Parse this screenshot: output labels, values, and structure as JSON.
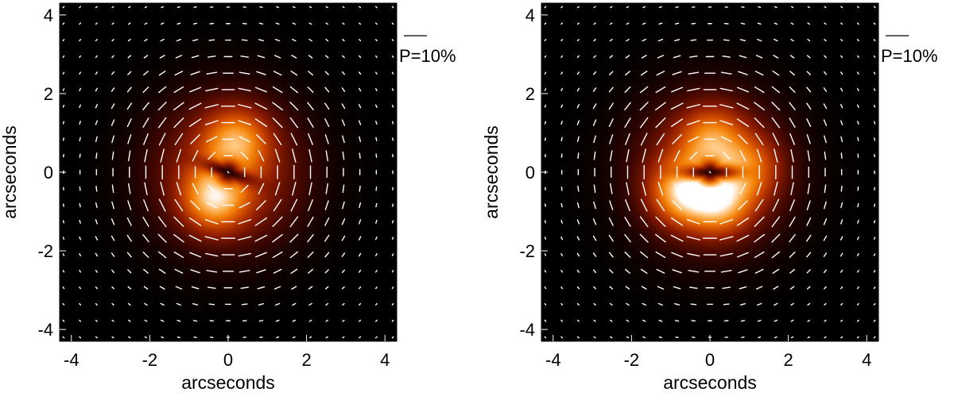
{
  "colors": {
    "background": "#000000",
    "vector": "#ffffff",
    "colormap": [
      "#000000",
      "#3a0500",
      "#8a1a00",
      "#d04a00",
      "#f4840a",
      "#ffc070",
      "#ffffff"
    ]
  },
  "chart_data": [
    {
      "type": "heatmap",
      "title": "",
      "xlabel": "arcseconds",
      "ylabel": "arcseconds",
      "xlim": [
        -4.3,
        4.3
      ],
      "ylim": [
        -4.3,
        4.3
      ],
      "xticks": [
        -4,
        -2,
        0,
        2,
        4
      ],
      "yticks": [
        -4,
        -2,
        0,
        2,
        4
      ],
      "xtick_labels": [
        "-4",
        "-2",
        "0",
        "2",
        "4"
      ],
      "ytick_labels": [
        "-4",
        "-2",
        "0",
        "2",
        "4"
      ],
      "grid": false,
      "legend": {
        "text": "P=10%",
        "placement": "top-right, outside"
      },
      "vector_field": "polarization vectors, azimuthal pattern",
      "intensity_peaks": [
        {
          "x": 0.2,
          "y": 0.8,
          "level": 0.82
        },
        {
          "x": -0.35,
          "y": -0.65,
          "level": 1.0
        }
      ],
      "dark_lane": {
        "x": 0,
        "y": 0,
        "angle_deg": -20
      }
    },
    {
      "type": "heatmap",
      "title": "",
      "xlabel": "arcseconds",
      "ylabel": "arcseconds",
      "xlim": [
        -4.3,
        4.3
      ],
      "ylim": [
        -4.3,
        4.3
      ],
      "xticks": [
        -4,
        -2,
        0,
        2,
        4
      ],
      "yticks": [
        -4,
        -2,
        0,
        2,
        4
      ],
      "xtick_labels": [
        "-4",
        "-2",
        "0",
        "2",
        "4"
      ],
      "ytick_labels": [
        "-4",
        "-2",
        "0",
        "2",
        "4"
      ],
      "grid": false,
      "legend": {
        "text": "P=10%",
        "placement": "top-right, outside"
      },
      "vector_field": "polarization vectors, azimuthal pattern",
      "intensity_peaks": [
        {
          "x": -0.7,
          "y": -0.5,
          "level": 1.0
        },
        {
          "x": 0.25,
          "y": -0.75,
          "level": 0.95
        },
        {
          "x": 0.05,
          "y": 0.85,
          "level": 0.72
        },
        {
          "x": 1.0,
          "y": 0.1,
          "level": 0.6
        }
      ],
      "dark_lane": {
        "x": 0,
        "y": 0,
        "angle_deg": 0
      }
    }
  ]
}
